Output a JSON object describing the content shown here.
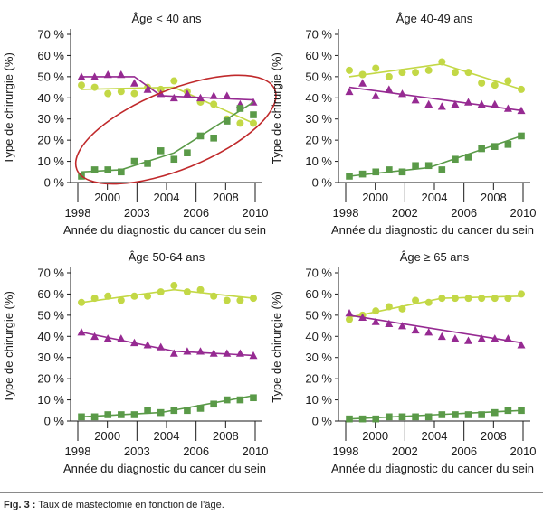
{
  "colors": {
    "green": "#5a9a48",
    "lime": "#c3d846",
    "purple": "#962a92",
    "highlight": "#c0292b",
    "axis": "#1a1a1a"
  },
  "caption": {
    "label": "Fig. 3 :",
    "text": " Taux de mastectomie en fonction de l’âge."
  },
  "chart_data": [
    {
      "type": "scatter",
      "title": "Âge < 40 ans",
      "xlabel": "Année du diagnostic du cancer du sein",
      "ylabel": "Type de chirurgie (%)",
      "xlim": [
        1998,
        2011
      ],
      "ylim": [
        0,
        70
      ],
      "yticks": [
        "0 %",
        "10 %",
        "20 %",
        "30 %",
        "40 %",
        "50 %",
        "60 %",
        "70 %"
      ],
      "xticks_bottom": [
        "1998",
        "2003",
        "2006",
        "2010"
      ],
      "xticks_top": [
        "2000",
        "2004",
        "2008"
      ],
      "x": [
        1998,
        1999,
        2000,
        2001,
        2002,
        2003,
        2004,
        2005,
        2006,
        2007,
        2008,
        2009,
        2010,
        2011
      ],
      "series": [
        {
          "marker": "circle",
          "color": "#c3d846",
          "values": [
            46,
            45,
            42,
            43,
            42,
            45,
            44,
            48,
            43,
            38,
            37,
            30,
            28,
            28
          ],
          "trend": [
            [
              1998,
              44
            ],
            [
              2005,
              45
            ],
            [
              2011,
              28
            ]
          ]
        },
        {
          "marker": "triangle",
          "color": "#962a92",
          "values": [
            50,
            50,
            51,
            51,
            47,
            44,
            42,
            40,
            42,
            40,
            41,
            41,
            37,
            38
          ],
          "trend": [
            [
              1998,
              50
            ],
            [
              2002,
              50
            ],
            [
              2004,
              41
            ],
            [
              2011,
              39
            ]
          ]
        },
        {
          "marker": "square",
          "color": "#5a9a48",
          "values": [
            3,
            6,
            6,
            5,
            10,
            9,
            15,
            11,
            14,
            22,
            21,
            29,
            35,
            32
          ],
          "trend": [
            [
              1998,
              5
            ],
            [
              2001,
              6
            ],
            [
              2005,
              14
            ],
            [
              2011,
              38
            ]
          ]
        }
      ],
      "annotation": "ellipse around converging series"
    },
    {
      "type": "scatter",
      "title": "Âge 40-49 ans",
      "xlabel": "Année du diagnostic du cancer du sein",
      "ylabel": "Type de chirurgie (%)",
      "xlim": [
        1998,
        2011
      ],
      "ylim": [
        0,
        70
      ],
      "yticks": [
        "0 %",
        "10 %",
        "20 %",
        "30 %",
        "40 %",
        "50 %",
        "60 %",
        "70 %"
      ],
      "xticks_bottom": [
        "1998",
        "2002",
        "2006",
        "2010"
      ],
      "xticks_top": [
        "2000",
        "2004",
        "2008"
      ],
      "x": [
        1998,
        1999,
        2000,
        2001,
        2002,
        2003,
        2004,
        2005,
        2006,
        2007,
        2008,
        2009,
        2010,
        2011
      ],
      "series": [
        {
          "marker": "circle",
          "color": "#c3d846",
          "values": [
            53,
            51,
            54,
            50,
            52,
            52,
            53,
            57,
            52,
            52,
            47,
            46,
            48,
            44
          ],
          "trend": [
            [
              1998,
              50
            ],
            [
              2005,
              56
            ],
            [
              2011,
              44
            ]
          ]
        },
        {
          "marker": "triangle",
          "color": "#962a92",
          "values": [
            43,
            47,
            41,
            44,
            42,
            39,
            37,
            36,
            37,
            38,
            37,
            37,
            35,
            34
          ],
          "trend": [
            [
              1998,
              45
            ],
            [
              2011,
              34
            ]
          ]
        },
        {
          "marker": "square",
          "color": "#5a9a48",
          "values": [
            3,
            4,
            5,
            6,
            5,
            8,
            8,
            6,
            11,
            12,
            16,
            17,
            18,
            22
          ],
          "trend": [
            [
              1998,
              3
            ],
            [
              2004,
              7
            ],
            [
              2011,
              22
            ]
          ]
        }
      ]
    },
    {
      "type": "scatter",
      "title": "Âge 50-64 ans",
      "xlabel": "Année du diagnostic du cancer du sein",
      "ylabel": "Type de chirurgie (%)",
      "xlim": [
        1998,
        2011
      ],
      "ylim": [
        0,
        70
      ],
      "yticks": [
        "0 %",
        "10 %",
        "20 %",
        "30 %",
        "40 %",
        "50 %",
        "60 %",
        "70 %"
      ],
      "xticks_bottom": [
        "1998",
        "2003",
        "2006",
        "2010"
      ],
      "xticks_top": [
        "2000",
        "2004",
        "2008"
      ],
      "x": [
        1998,
        1999,
        2000,
        2001,
        2002,
        2003,
        2004,
        2005,
        2006,
        2007,
        2008,
        2009,
        2010,
        2011
      ],
      "series": [
        {
          "marker": "circle",
          "color": "#c3d846",
          "values": [
            56,
            58,
            59,
            57,
            59,
            59,
            61,
            64,
            61,
            62,
            59,
            57,
            57,
            58
          ],
          "trend": [
            [
              1998,
              56
            ],
            [
              2005,
              62
            ],
            [
              2011,
              58
            ]
          ]
        },
        {
          "marker": "triangle",
          "color": "#962a92",
          "values": [
            42,
            40,
            39,
            39,
            37,
            36,
            35,
            32,
            33,
            33,
            32,
            32,
            32,
            31
          ],
          "trend": [
            [
              1998,
              42
            ],
            [
              2005,
              33
            ],
            [
              2011,
              31
            ]
          ]
        },
        {
          "marker": "square",
          "color": "#5a9a48",
          "values": [
            2,
            2,
            3,
            3,
            3,
            5,
            4,
            5,
            5,
            6,
            8,
            10,
            10,
            11
          ],
          "trend": [
            [
              1998,
              2
            ],
            [
              2004,
              4
            ],
            [
              2011,
              12
            ]
          ]
        }
      ]
    },
    {
      "type": "scatter",
      "title": "Âge ≥ 65 ans",
      "xlabel": "Année du diagnostic du cancer du sein",
      "ylabel": "Type de chirurgie (%)",
      "xlim": [
        1998,
        2011
      ],
      "ylim": [
        0,
        70
      ],
      "yticks": [
        "0 %",
        "10 %",
        "20 %",
        "30 %",
        "40 %",
        "50 %",
        "60 %",
        "70 %"
      ],
      "xticks_bottom": [
        "1998",
        "2002",
        "2006",
        "2010"
      ],
      "xticks_top": [
        "2000",
        "2004",
        "2008"
      ],
      "x": [
        1998,
        1999,
        2000,
        2001,
        2002,
        2003,
        2004,
        2005,
        2006,
        2007,
        2008,
        2009,
        2010,
        2011
      ],
      "series": [
        {
          "marker": "circle",
          "color": "#c3d846",
          "values": [
            48,
            50,
            52,
            54,
            53,
            57,
            56,
            58,
            58,
            58,
            58,
            58,
            58,
            60
          ],
          "trend": [
            [
              1998,
              49
            ],
            [
              2005,
              58
            ],
            [
              2011,
              59
            ]
          ]
        },
        {
          "marker": "triangle",
          "color": "#962a92",
          "values": [
            51,
            49,
            47,
            46,
            45,
            43,
            42,
            40,
            39,
            38,
            39,
            39,
            39,
            36
          ],
          "trend": [
            [
              1998,
              50
            ],
            [
              2011,
              37
            ]
          ]
        },
        {
          "marker": "square",
          "color": "#5a9a48",
          "values": [
            1,
            1,
            1,
            2,
            2,
            2,
            2,
            3,
            3,
            3,
            3,
            4,
            5,
            5
          ],
          "trend": [
            [
              1998,
              1
            ],
            [
              2011,
              5
            ]
          ]
        }
      ]
    }
  ]
}
